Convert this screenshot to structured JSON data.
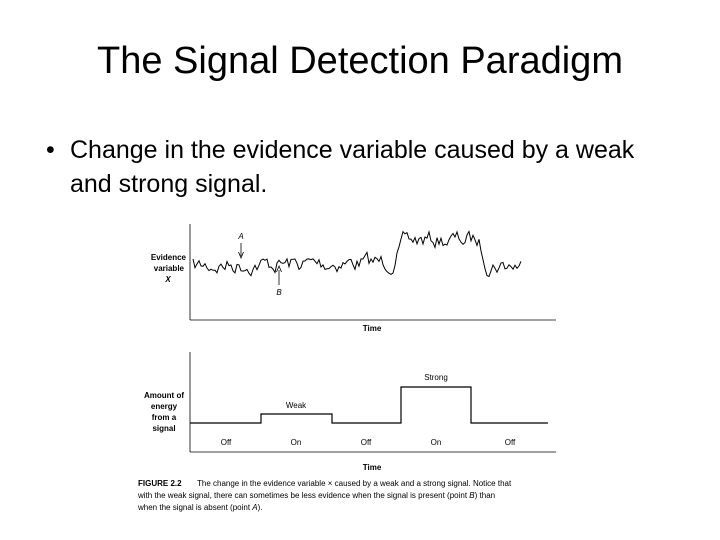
{
  "title": "The Signal Detection Paradigm",
  "bullets": [
    "Change in the evidence variable caused by a weak and strong signal."
  ],
  "figure": {
    "top_panel": {
      "y_label": [
        "Evidence",
        "variable",
        "X"
      ],
      "point_a": "A",
      "point_b": "B",
      "x_label": "Time"
    },
    "bottom_panel": {
      "y_label": [
        "Amount of",
        "energy",
        "from a",
        "signal"
      ],
      "weak": "Weak",
      "strong": "Strong",
      "phases": [
        "Off",
        "On",
        "Off",
        "On",
        "Off"
      ],
      "x_label": "Time"
    },
    "caption": {
      "number": "FIGURE 2.2",
      "lines": [
        [
          "The change in the evidence variable × caused by a weak and a strong signal. Notice that"
        ],
        [
          "with the weak signal, there can sometimes be less evidence when the signal is present (point ",
          "B",
          ") than"
        ],
        [
          "when the signal is absent (point ",
          "A",
          ")."
        ]
      ]
    }
  }
}
